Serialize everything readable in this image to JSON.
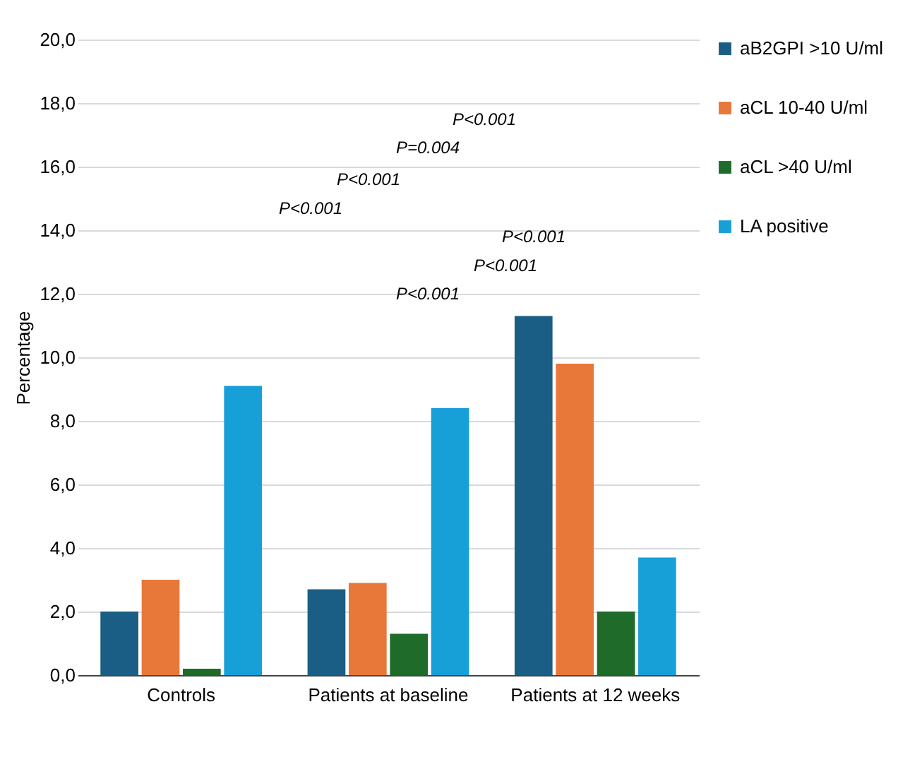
{
  "chart_data": {
    "type": "bar",
    "ylabel": "Percentage",
    "categories": [
      "Controls",
      "Patients at baseline",
      "Patients at 12 weeks"
    ],
    "series": [
      {
        "name": "aB2GPI >10 U/ml",
        "color": "#1a5e85",
        "values": [
          2.0,
          2.7,
          11.3
        ]
      },
      {
        "name": "aCL 10-40 U/ml",
        "color": "#e8773a",
        "values": [
          3.0,
          2.9,
          9.8
        ]
      },
      {
        "name": "aCL >40 U/ml",
        "color": "#1e6b2a",
        "values": [
          0.2,
          1.3,
          2.0
        ]
      },
      {
        "name": "LA positive",
        "color": "#179fd8",
        "values": [
          9.1,
          8.4,
          3.7
        ]
      }
    ],
    "ylim": [
      0,
      20
    ],
    "yticks": [
      {
        "value": 0,
        "label": "0,0"
      },
      {
        "value": 2,
        "label": "2,0"
      },
      {
        "value": 4,
        "label": "4,0"
      },
      {
        "value": 6,
        "label": "6,0"
      },
      {
        "value": 8,
        "label": "8,0"
      },
      {
        "value": 10,
        "label": "10,0"
      },
      {
        "value": 12,
        "label": "12,0"
      },
      {
        "value": 14,
        "label": "14,0"
      },
      {
        "value": 16,
        "label": "16,0"
      },
      {
        "value": 18,
        "label": "18,0"
      },
      {
        "value": 20,
        "label": "20,0"
      }
    ],
    "grid": "y",
    "legend": "right",
    "annotations": [
      "P<0.001",
      "P=0.004",
      "P<0.001",
      "P<0.001",
      "P<0.001",
      "P<0.001",
      "P<0.001"
    ]
  }
}
